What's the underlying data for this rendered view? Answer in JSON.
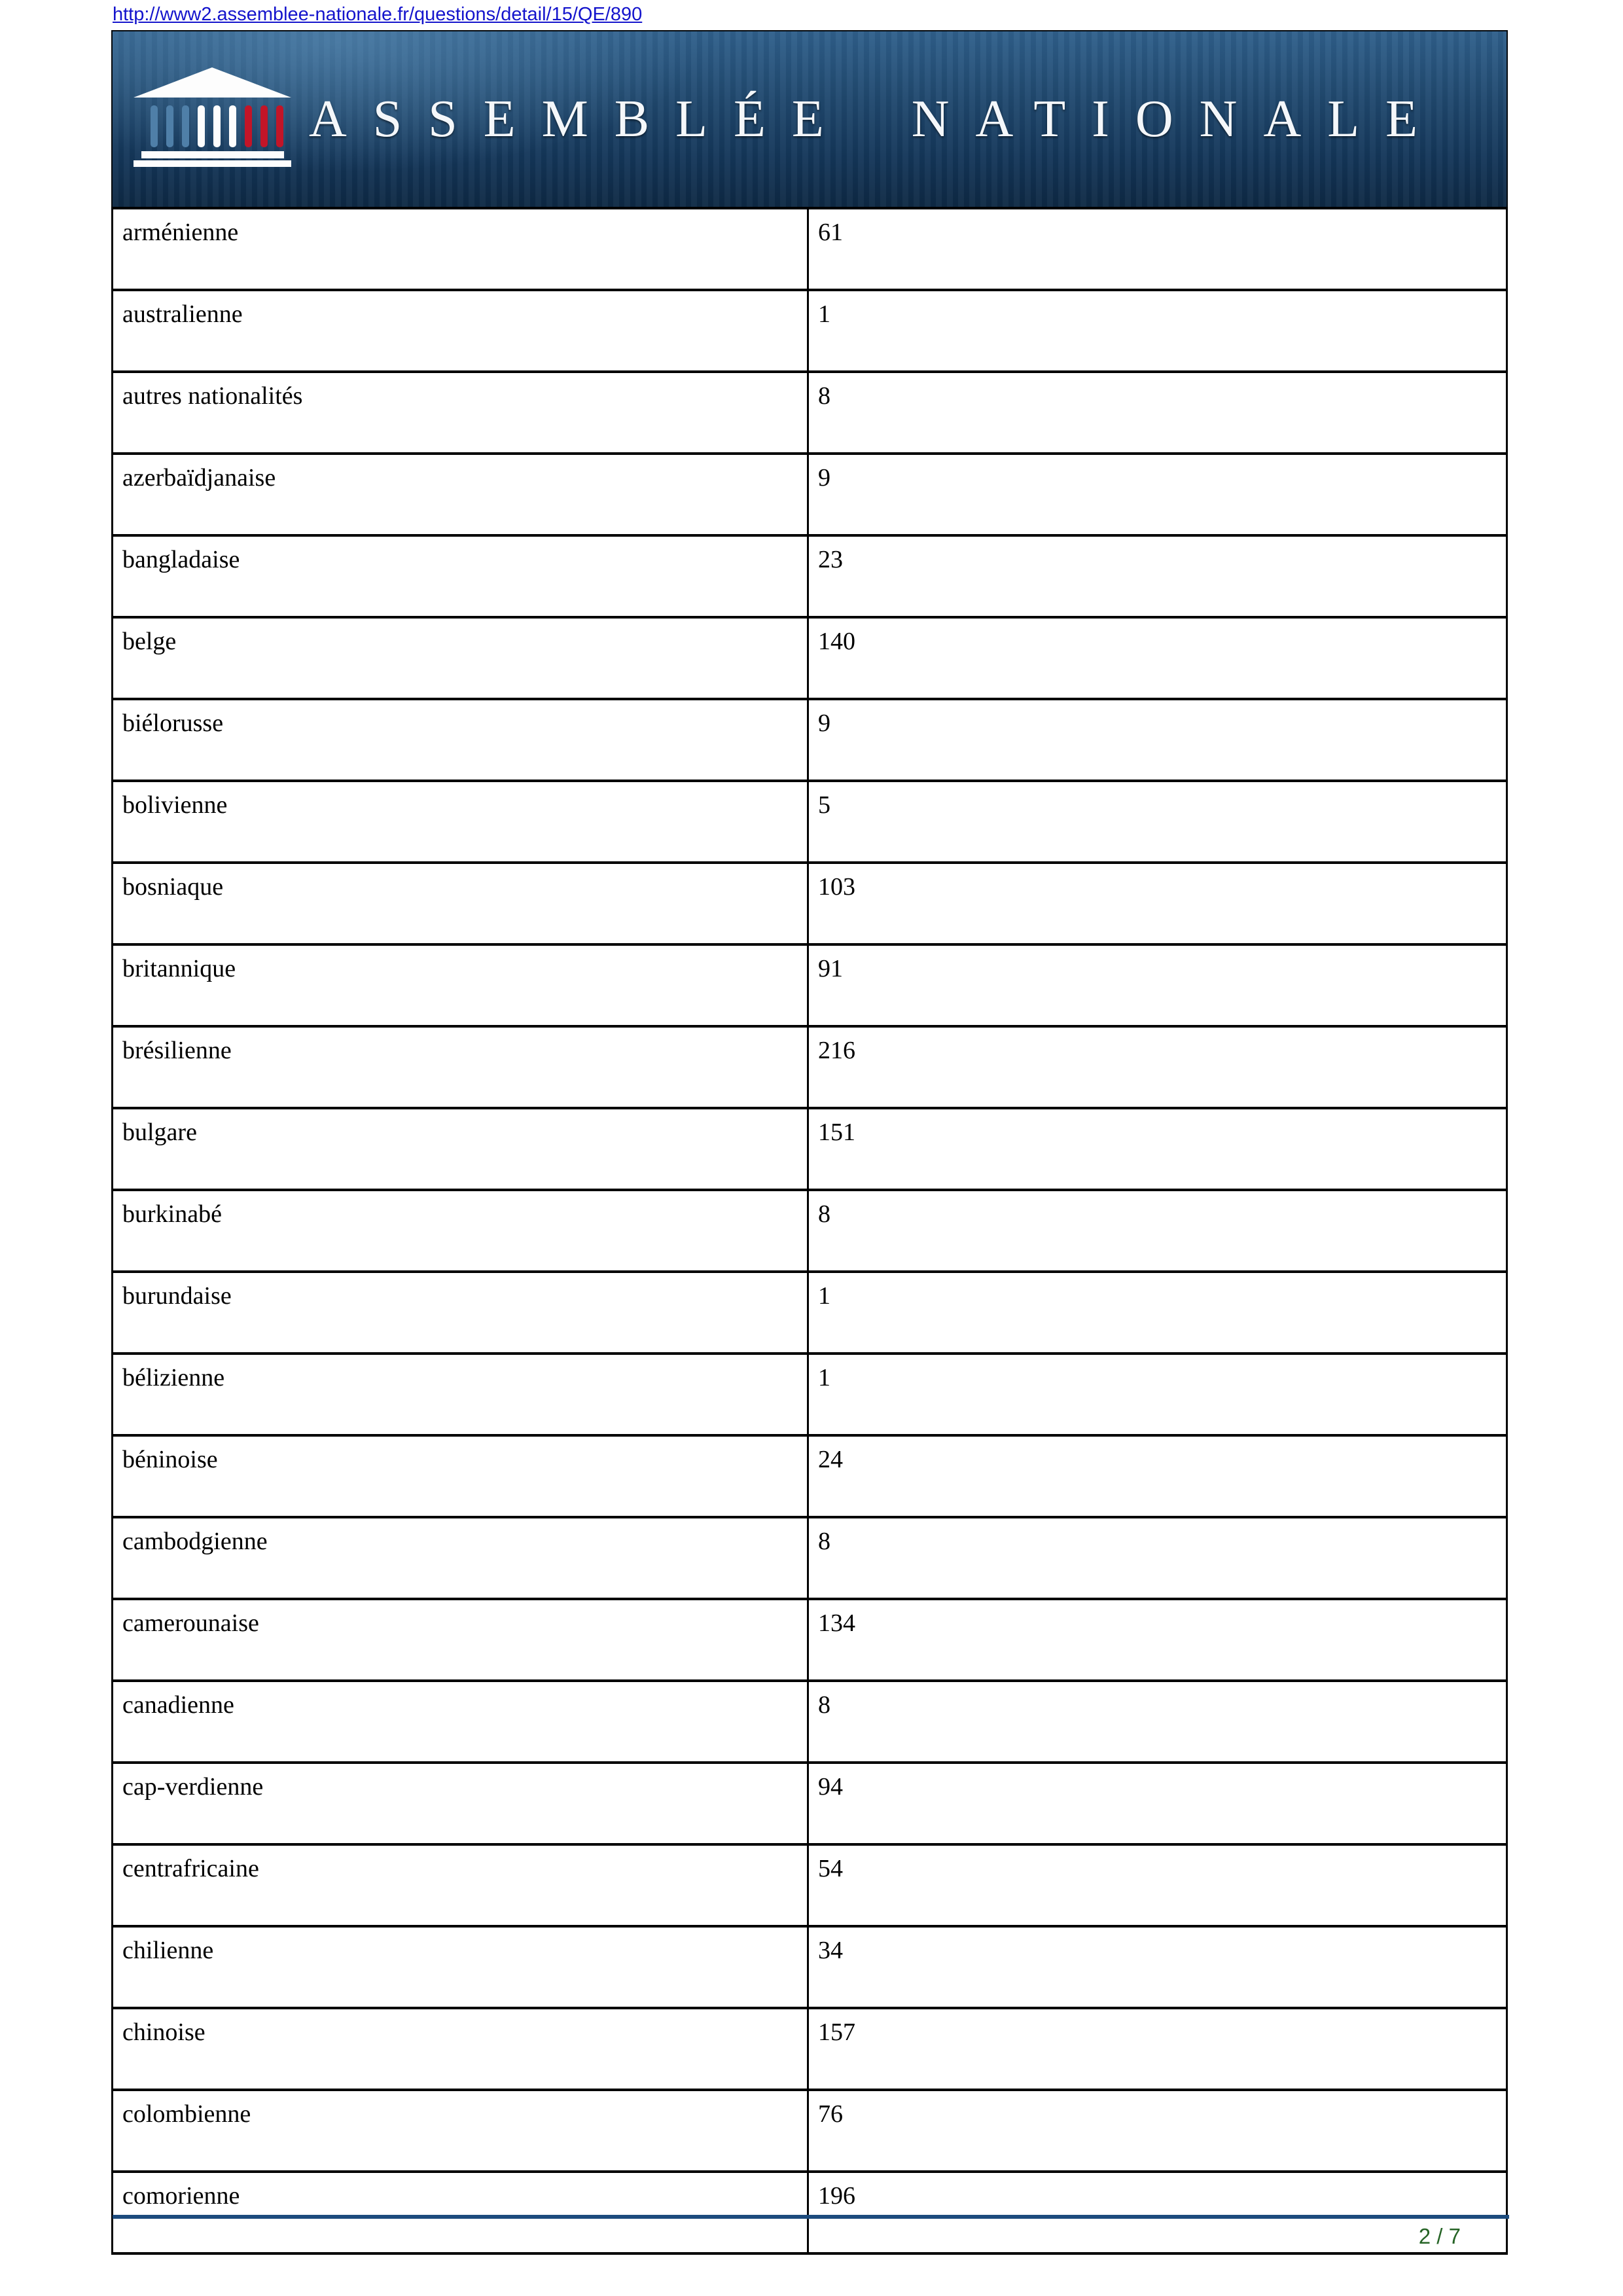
{
  "header": {
    "url": "http://www2.assemblee-nationale.fr/questions/detail/15/QE/890"
  },
  "banner": {
    "title": "ASSEMBLÉE NATIONALE",
    "icon": "assemblee-temple-icon",
    "colors": {
      "background_top": "#30608c",
      "background_bottom": "#0e2944",
      "column_blue": "#4f7fa8",
      "column_white": "#fdfdfd",
      "column_red": "#c21528",
      "title_text": "#f4f7fa"
    }
  },
  "table": {
    "rows": [
      {
        "nationality": "arménienne",
        "count": "61"
      },
      {
        "nationality": "australienne",
        "count": "1"
      },
      {
        "nationality": "autres nationalités",
        "count": "8"
      },
      {
        "nationality": "azerbaïdjanaise",
        "count": "9"
      },
      {
        "nationality": "bangladaise",
        "count": "23"
      },
      {
        "nationality": "belge",
        "count": "140"
      },
      {
        "nationality": "biélorusse",
        "count": "9"
      },
      {
        "nationality": "bolivienne",
        "count": "5"
      },
      {
        "nationality": "bosniaque",
        "count": "103"
      },
      {
        "nationality": "britannique",
        "count": "91"
      },
      {
        "nationality": "brésilienne",
        "count": "216"
      },
      {
        "nationality": "bulgare",
        "count": "151"
      },
      {
        "nationality": "burkinabé",
        "count": "8"
      },
      {
        "nationality": "burundaise",
        "count": "1"
      },
      {
        "nationality": "bélizienne",
        "count": "1"
      },
      {
        "nationality": "béninoise",
        "count": "24"
      },
      {
        "nationality": "cambodgienne",
        "count": "8"
      },
      {
        "nationality": "camerounaise",
        "count": "134"
      },
      {
        "nationality": "canadienne",
        "count": "8"
      },
      {
        "nationality": "cap-verdienne",
        "count": "94"
      },
      {
        "nationality": "centrafricaine",
        "count": "54"
      },
      {
        "nationality": "chilienne",
        "count": "34"
      },
      {
        "nationality": "chinoise",
        "count": "157"
      },
      {
        "nationality": "colombienne",
        "count": "76"
      },
      {
        "nationality": "comorienne",
        "count": "196"
      }
    ]
  },
  "footer": {
    "page_indicator": "2 / 7",
    "rule_color": "#1c4b7d"
  }
}
